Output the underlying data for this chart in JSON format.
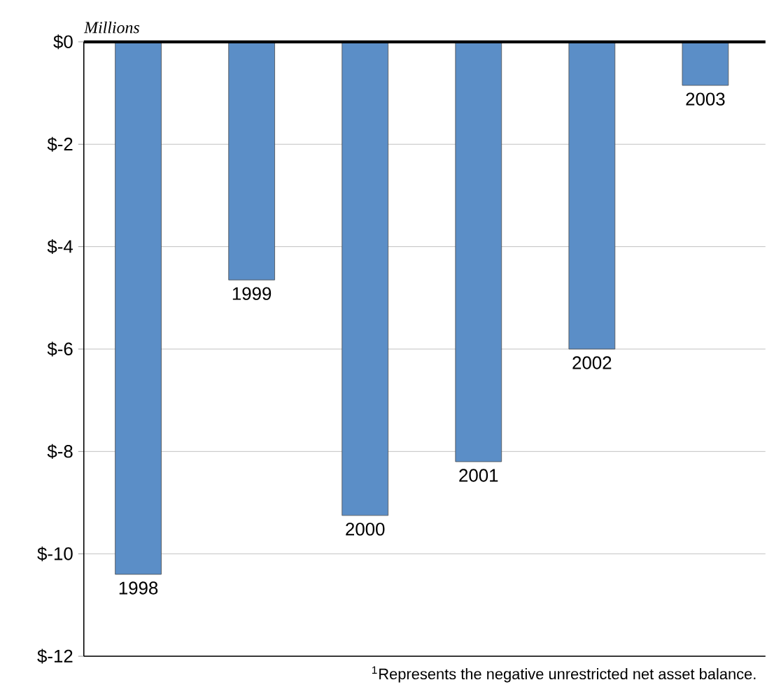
{
  "chart_data": {
    "type": "bar",
    "ylabel": "Millions",
    "categories": [
      "1998",
      "1999",
      "2000",
      "2001",
      "2002",
      "2003"
    ],
    "values": [
      -10.4,
      -4.65,
      -9.25,
      -8.2,
      -6.0,
      -0.85
    ],
    "color": "#5b8ec7",
    "ylim": [
      -12,
      0
    ],
    "yticks": [
      {
        "value": -12,
        "label": "$-12"
      },
      {
        "value": -10,
        "label": "$-10"
      },
      {
        "value": -8,
        "label": "$-8"
      },
      {
        "value": -6,
        "label": "$-6"
      },
      {
        "value": -4,
        "label": "$-4"
      },
      {
        "value": -2,
        "label": "$-2"
      },
      {
        "value": 0,
        "label": "$0"
      }
    ],
    "grid": "y",
    "annotations": [
      "$^{1}$Represents the negative unrestricted net asset balance."
    ]
  }
}
